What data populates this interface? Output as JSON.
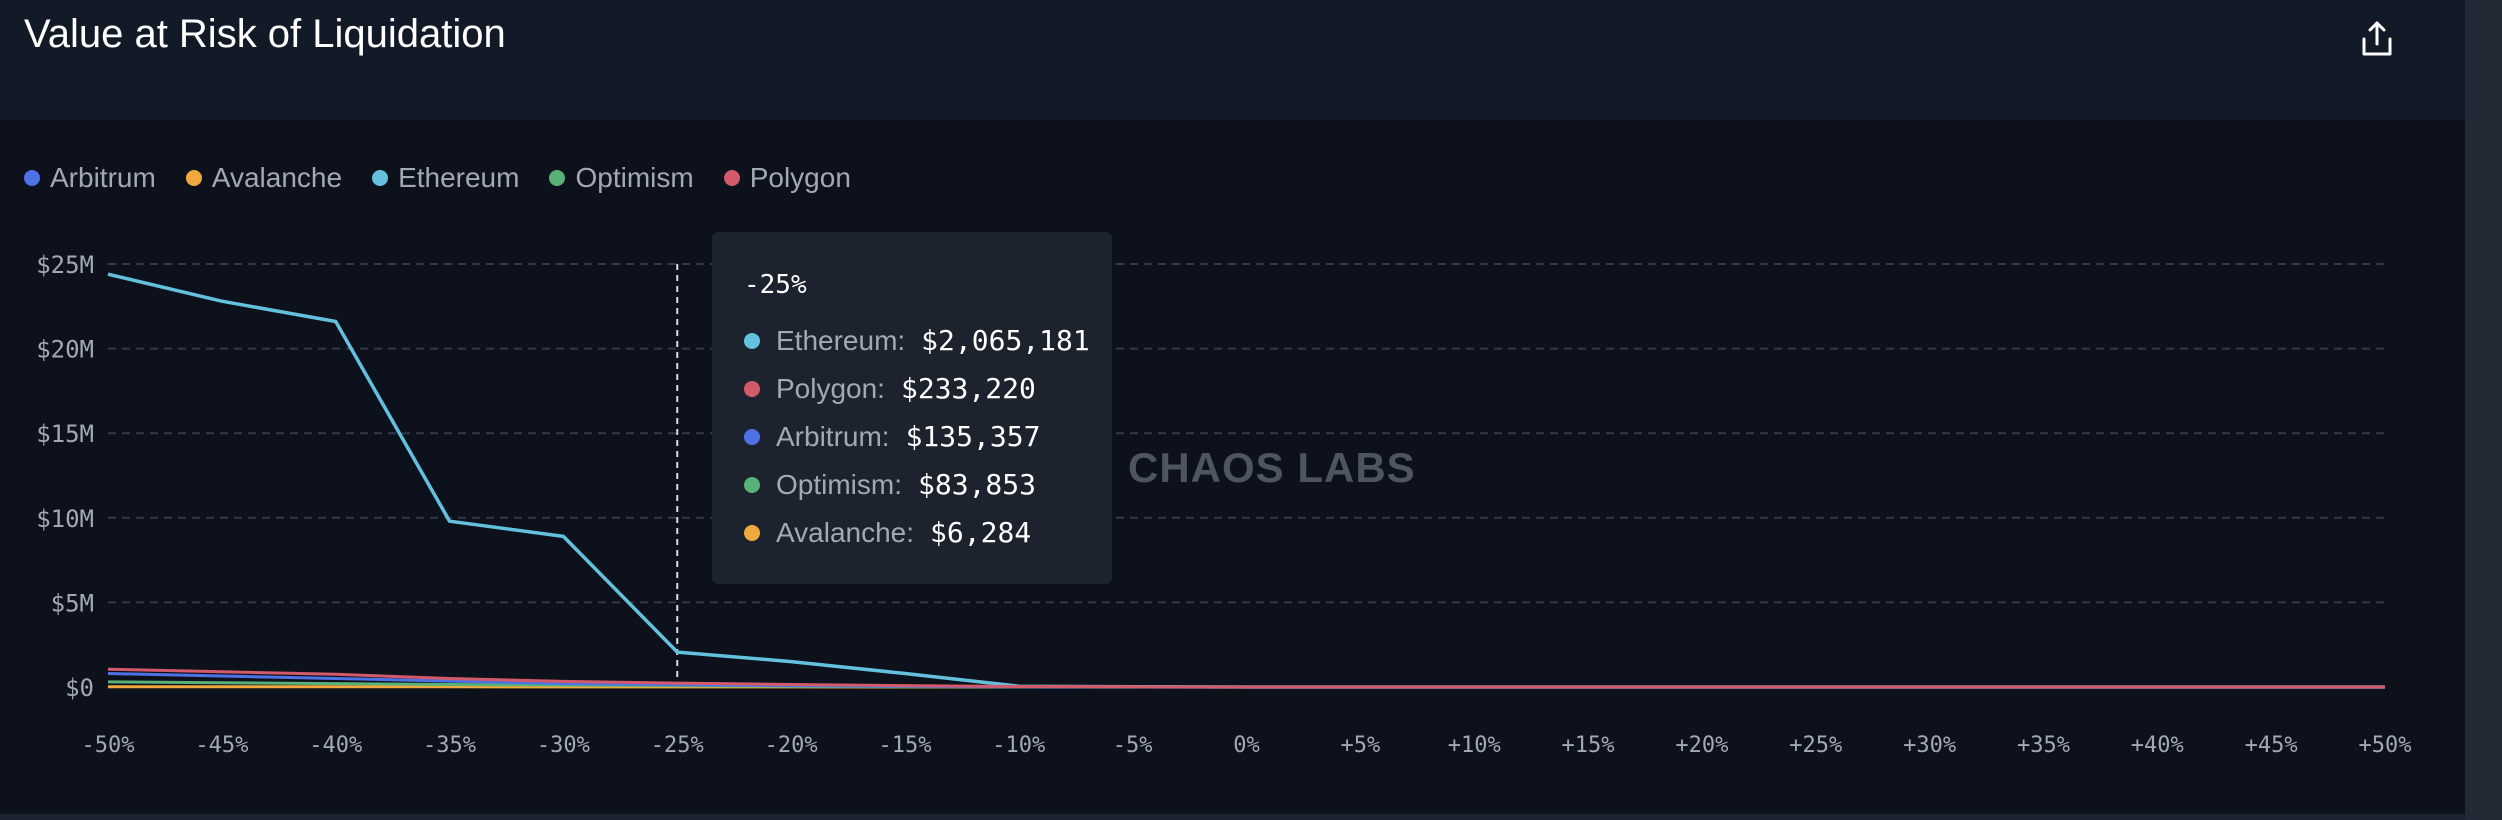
{
  "header": {
    "title": "Value at Risk of Liquidation",
    "share_icon": "share-upload-icon"
  },
  "watermark": "CHAOS LABS",
  "colors": {
    "Arbitrum": "#4e72e6",
    "Avalanche": "#f0a93c",
    "Ethereum": "#64c1dd",
    "Optimism": "#58b277",
    "Polygon": "#d35a6b"
  },
  "legend": [
    {
      "label": "Arbitrum"
    },
    {
      "label": "Avalanche"
    },
    {
      "label": "Ethereum"
    },
    {
      "label": "Optimism"
    },
    {
      "label": "Polygon"
    }
  ],
  "tooltip": {
    "header": "-25%",
    "rows": [
      {
        "name": "Ethereum:",
        "value": "$2,065,181",
        "series": "Ethereum"
      },
      {
        "name": "Polygon:",
        "value": "$233,220",
        "series": "Polygon"
      },
      {
        "name": "Arbitrum:",
        "value": "$135,357",
        "series": "Arbitrum"
      },
      {
        "name": "Optimism:",
        "value": "$83,853",
        "series": "Optimism"
      },
      {
        "name": "Avalanche:",
        "value": "$6,284",
        "series": "Avalanche"
      }
    ]
  },
  "chart_data": {
    "type": "line",
    "title": "Value at Risk of Liquidation",
    "x": [
      "-50%",
      "-45%",
      "-40%",
      "-35%",
      "-30%",
      "-25%",
      "-20%",
      "-15%",
      "-10%",
      "-5%",
      "0%",
      "+5%",
      "+10%",
      "+15%",
      "+20%",
      "+25%",
      "+30%",
      "+35%",
      "+40%",
      "+45%",
      "+50%"
    ],
    "ylim": [
      0,
      25000000
    ],
    "y_ticks": [
      0,
      5000000,
      10000000,
      15000000,
      20000000,
      25000000
    ],
    "y_tick_labels": [
      "$0",
      "$5M",
      "$10M",
      "$15M",
      "$20M",
      "$25M"
    ],
    "grid": "horizontal-dashed",
    "legend_position": "top-left",
    "highlight_x": "-25%",
    "series": [
      {
        "name": "Ethereum",
        "values": [
          24400000,
          22800000,
          21600000,
          9800000,
          8900000,
          2065181,
          1500000,
          800000,
          50000,
          20000,
          0,
          0,
          0,
          0,
          0,
          0,
          0,
          0,
          0,
          0,
          0
        ]
      },
      {
        "name": "Polygon",
        "values": [
          1050000,
          900000,
          750000,
          500000,
          330000,
          233220,
          150000,
          80000,
          30000,
          10000,
          0,
          0,
          0,
          0,
          0,
          0,
          0,
          0,
          0,
          0,
          0
        ]
      },
      {
        "name": "Arbitrum",
        "values": [
          800000,
          650000,
          500000,
          350000,
          200000,
          135357,
          80000,
          40000,
          10000,
          0,
          0,
          0,
          0,
          0,
          0,
          0,
          0,
          0,
          0,
          0,
          0
        ]
      },
      {
        "name": "Optimism",
        "values": [
          300000,
          250000,
          200000,
          150000,
          110000,
          83853,
          50000,
          20000,
          5000,
          0,
          0,
          0,
          0,
          0,
          0,
          0,
          0,
          0,
          0,
          0,
          0
        ]
      },
      {
        "name": "Avalanche",
        "values": [
          20000,
          15000,
          12000,
          10000,
          8000,
          6284,
          3000,
          1000,
          0,
          0,
          0,
          0,
          0,
          0,
          0,
          0,
          0,
          0,
          0,
          0,
          0
        ]
      }
    ]
  }
}
